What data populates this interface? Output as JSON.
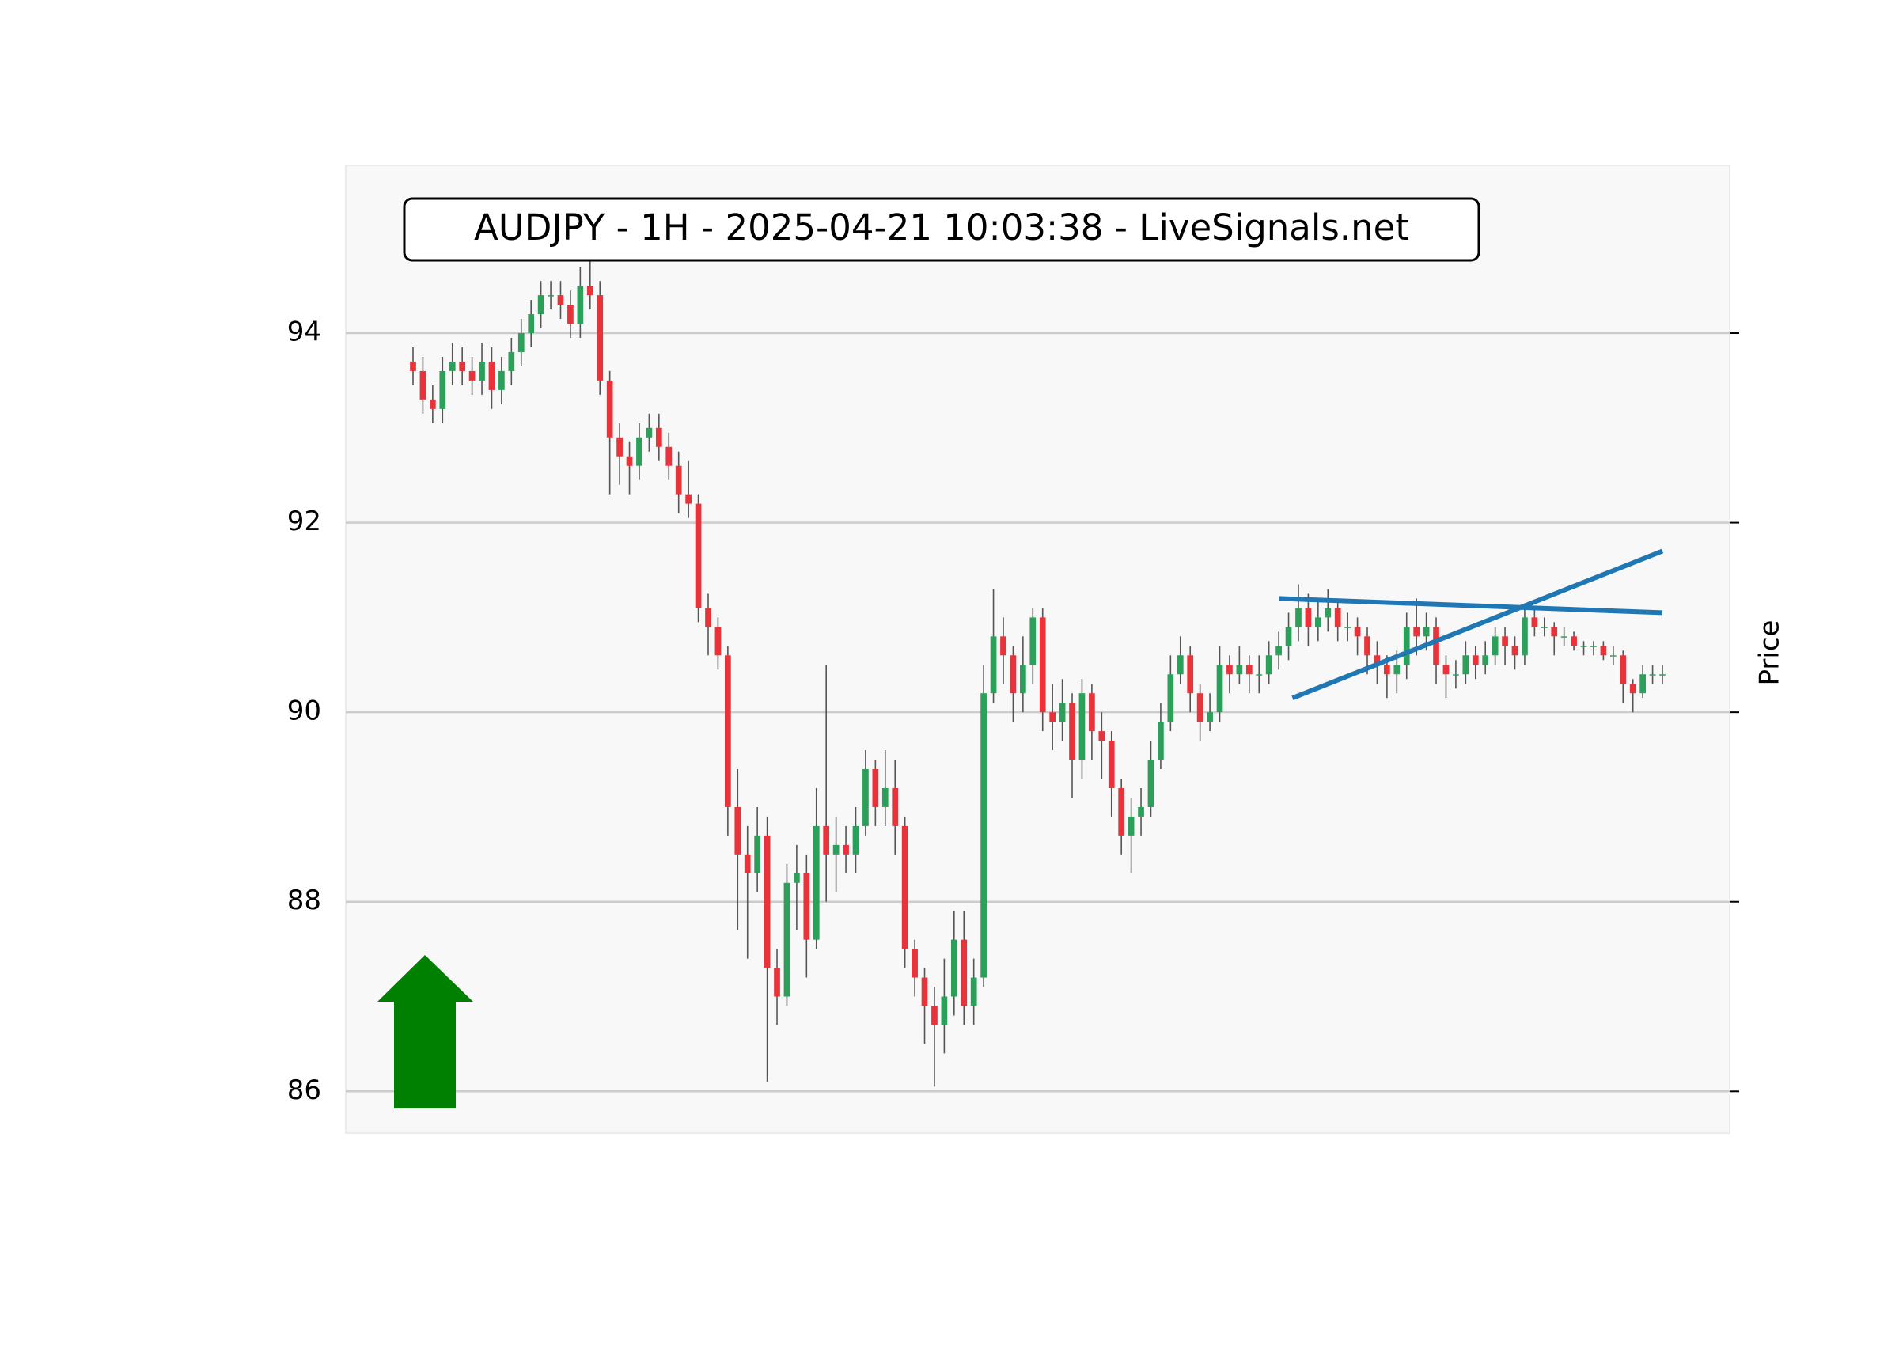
{
  "chart_data": {
    "type": "candlestick",
    "title": "AUDJPY - 1H - 2025-04-21 10:03:38 - LiveSignals.net",
    "y_label": "Price",
    "ylim": [
      85.56,
      95.77
    ],
    "yticks": [
      86,
      88,
      90,
      92,
      94
    ],
    "grid": true,
    "up_color": "#2ca05a",
    "down_color": "#e8333a",
    "wick_color": "#555555",
    "signal_arrow": "up",
    "signal_color": "#008000",
    "open": [
      93.7,
      93.6,
      93.3,
      93.2,
      93.6,
      93.7,
      93.6,
      93.5,
      93.7,
      93.4,
      93.6,
      93.8,
      94.0,
      94.2,
      94.4,
      94.4,
      94.3,
      94.1,
      94.5,
      94.4,
      93.5,
      92.9,
      92.7,
      92.6,
      92.9,
      93.0,
      92.8,
      92.6,
      92.3,
      92.2,
      91.1,
      90.9,
      90.6,
      89.0,
      88.5,
      88.3,
      88.7,
      87.3,
      87.0,
      88.2,
      88.3,
      87.6,
      88.8,
      88.5,
      88.6,
      88.5,
      88.8,
      89.4,
      89.0,
      89.2,
      88.8,
      87.5,
      87.2,
      86.9,
      86.7,
      87.0,
      87.6,
      86.9,
      87.2,
      90.2,
      90.8,
      90.6,
      90.2,
      90.5,
      91.0,
      90.0,
      89.9,
      90.1,
      89.5,
      90.2,
      89.8,
      89.7,
      89.2,
      88.7,
      88.9,
      89.0,
      89.5,
      89.9,
      90.4,
      90.6,
      90.2,
      89.9,
      90.0,
      90.5,
      90.4,
      90.5,
      90.4,
      90.4,
      90.6,
      90.7,
      90.9,
      91.1,
      90.9,
      91.0,
      91.1,
      90.9,
      90.9,
      90.8,
      90.6,
      90.5,
      90.4,
      90.5,
      90.9,
      90.8,
      90.9,
      90.5,
      90.4,
      90.4,
      90.6,
      90.5,
      90.6,
      90.8,
      90.7,
      90.6,
      91.0,
      90.9,
      90.9,
      90.8,
      90.8,
      90.7,
      90.7,
      90.7,
      90.6,
      90.6,
      90.3,
      90.2,
      90.4,
      90.4
    ],
    "high": [
      93.85,
      93.75,
      93.45,
      93.75,
      93.9,
      93.85,
      93.75,
      93.9,
      93.85,
      93.75,
      93.95,
      94.15,
      94.35,
      94.55,
      94.55,
      94.55,
      94.45,
      94.7,
      94.8,
      94.55,
      93.6,
      93.05,
      92.85,
      93.05,
      93.15,
      93.15,
      92.95,
      92.75,
      92.65,
      92.3,
      91.25,
      91.0,
      90.7,
      89.4,
      88.8,
      89.0,
      88.9,
      87.5,
      88.4,
      88.6,
      88.5,
      89.2,
      90.5,
      88.9,
      88.8,
      89.0,
      89.6,
      89.5,
      89.6,
      89.5,
      88.9,
      87.6,
      87.3,
      87.1,
      87.4,
      87.9,
      87.9,
      87.4,
      90.5,
      91.3,
      91.0,
      90.7,
      90.8,
      91.1,
      91.1,
      90.3,
      90.35,
      90.2,
      90.35,
      90.3,
      90.0,
      89.8,
      89.3,
      89.1,
      89.2,
      89.7,
      90.1,
      90.6,
      90.8,
      90.7,
      90.3,
      90.2,
      90.7,
      90.6,
      90.7,
      90.6,
      90.6,
      90.75,
      90.85,
      91.05,
      91.35,
      91.25,
      91.2,
      91.3,
      91.2,
      91.05,
      91.0,
      90.9,
      90.75,
      90.6,
      90.65,
      91.05,
      91.2,
      91.05,
      91.0,
      90.6,
      90.55,
      90.75,
      90.7,
      90.75,
      90.9,
      90.9,
      90.8,
      91.1,
      91.1,
      91.0,
      90.95,
      90.9,
      90.85,
      90.75,
      90.75,
      90.75,
      90.7,
      90.65,
      90.35,
      90.5,
      90.5,
      90.5
    ],
    "low": [
      93.45,
      93.15,
      93.05,
      93.05,
      93.45,
      93.45,
      93.35,
      93.35,
      93.2,
      93.25,
      93.45,
      93.65,
      93.85,
      94.05,
      94.25,
      94.15,
      93.95,
      93.95,
      94.25,
      93.35,
      92.3,
      92.4,
      92.3,
      92.45,
      92.75,
      92.65,
      92.45,
      92.1,
      92.05,
      90.95,
      90.6,
      90.45,
      88.7,
      87.7,
      87.4,
      88.1,
      86.1,
      86.7,
      86.9,
      87.7,
      87.2,
      87.5,
      88.0,
      88.1,
      88.3,
      88.3,
      88.7,
      88.8,
      88.8,
      88.5,
      87.3,
      87.0,
      86.5,
      86.05,
      86.4,
      86.8,
      86.7,
      86.7,
      87.1,
      90.1,
      90.3,
      89.9,
      90.0,
      90.3,
      89.8,
      89.6,
      89.7,
      89.1,
      89.3,
      89.5,
      89.3,
      88.9,
      88.5,
      88.3,
      88.7,
      88.9,
      89.4,
      89.8,
      90.3,
      90.0,
      89.7,
      89.8,
      89.9,
      90.2,
      90.3,
      90.2,
      90.2,
      90.3,
      90.45,
      90.55,
      90.75,
      90.7,
      90.75,
      90.85,
      90.75,
      90.75,
      90.6,
      90.4,
      90.3,
      90.15,
      90.2,
      90.35,
      90.6,
      90.65,
      90.3,
      90.15,
      90.25,
      90.3,
      90.35,
      90.4,
      90.5,
      90.5,
      90.45,
      90.5,
      90.8,
      90.8,
      90.6,
      90.7,
      90.65,
      90.6,
      90.6,
      90.55,
      90.5,
      90.1,
      90.0,
      90.15,
      90.3,
      90.3
    ],
    "close": [
      93.6,
      93.3,
      93.2,
      93.6,
      93.7,
      93.6,
      93.5,
      93.7,
      93.4,
      93.6,
      93.8,
      94.0,
      94.2,
      94.4,
      94.4,
      94.3,
      94.1,
      94.5,
      94.4,
      93.5,
      92.9,
      92.7,
      92.6,
      92.9,
      93.0,
      92.8,
      92.6,
      92.3,
      92.2,
      91.1,
      90.9,
      90.6,
      89.0,
      88.5,
      88.3,
      88.7,
      87.3,
      87.0,
      88.2,
      88.3,
      87.6,
      88.8,
      88.5,
      88.6,
      88.5,
      88.8,
      89.4,
      89.0,
      89.2,
      88.8,
      87.5,
      87.2,
      86.9,
      86.7,
      87.0,
      87.6,
      86.9,
      87.2,
      90.2,
      90.8,
      90.6,
      90.2,
      90.5,
      91.0,
      90.0,
      89.9,
      90.1,
      89.5,
      90.2,
      89.8,
      89.7,
      89.2,
      88.7,
      88.9,
      89.0,
      89.5,
      89.9,
      90.4,
      90.6,
      90.2,
      89.9,
      90.0,
      90.5,
      90.4,
      90.5,
      90.4,
      90.4,
      90.6,
      90.7,
      90.9,
      91.1,
      90.9,
      91.0,
      91.1,
      90.9,
      90.9,
      90.8,
      90.6,
      90.5,
      90.4,
      90.5,
      90.9,
      90.8,
      90.9,
      90.5,
      90.4,
      90.4,
      90.6,
      90.5,
      90.6,
      90.8,
      90.7,
      90.6,
      91.0,
      90.9,
      90.9,
      90.8,
      90.8,
      90.7,
      90.7,
      90.7,
      90.6,
      90.6,
      90.3,
      90.2,
      90.4,
      90.4,
      90.4
    ],
    "lines": [
      {
        "x": [
          88,
          127
        ],
        "y": [
          91.2,
          91.05
        ],
        "color": "#1f77b4"
      },
      {
        "x": [
          89.4,
          127
        ],
        "y": [
          90.15,
          91.7
        ],
        "color": "#1f77b4"
      }
    ]
  }
}
